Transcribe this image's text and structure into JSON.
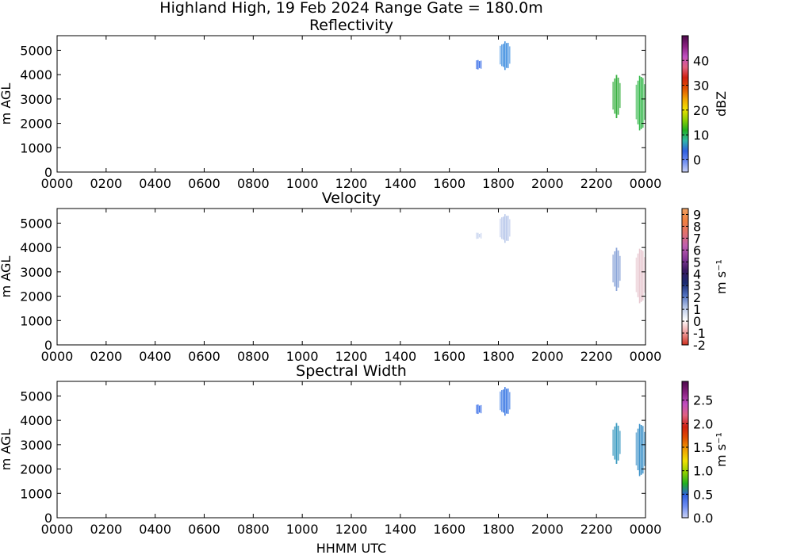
{
  "figure": {
    "suptitle": "Highland High, 19 Feb 2024 Range Gate = 180.0m",
    "xlabel": "HHMM UTC"
  },
  "chart_data": [
    {
      "type": "heatmap",
      "title": "Reflectivity",
      "ylabel": "m AGL",
      "x_tick_labels": [
        "0000",
        "0200",
        "0400",
        "0600",
        "0800",
        "1000",
        "1200",
        "1400",
        "1600",
        "1800",
        "2000",
        "2200",
        "0000"
      ],
      "xlim_hours": [
        0,
        24
      ],
      "ylim": [
        0,
        5600
      ],
      "y_ticks": [
        0,
        1000,
        2000,
        3000,
        4000,
        5000
      ],
      "colorbar": {
        "label": "dBZ",
        "range": [
          -5,
          50
        ],
        "ticks": [
          0,
          10,
          20,
          30,
          40
        ],
        "colors": [
          "#c9d0f5",
          "#6f8ef2",
          "#2f60e0",
          "#2fb8a8",
          "#20b020",
          "#90d000",
          "#f0e000",
          "#f0a000",
          "#e05000",
          "#d02010",
          "#e06080",
          "#c050c0",
          "#8a2080",
          "#4a0a4a"
        ]
      },
      "echoes": [
        {
          "t_start": 17.08,
          "t_end": 17.33,
          "z_bottom": 4150,
          "z_top": 4650,
          "mean_value": -1,
          "color": "#3a6fe8"
        },
        {
          "t_start": 18.05,
          "t_end": 18.5,
          "z_bottom": 4150,
          "z_top": 5400,
          "mean_value": 3,
          "color": "#3e8ee0"
        },
        {
          "t_start": 22.65,
          "t_end": 23.0,
          "z_bottom": 2200,
          "z_top": 4000,
          "mean_value": 9,
          "color": "#38b040"
        },
        {
          "t_start": 23.6,
          "t_end": 24.0,
          "z_bottom": 1650,
          "z_top": 4000,
          "mean_value": 10,
          "color": "#34b84a"
        }
      ]
    },
    {
      "type": "heatmap",
      "title": "Velocity",
      "ylabel": "m AGL",
      "x_tick_labels": [
        "0000",
        "0200",
        "0400",
        "0600",
        "0800",
        "1000",
        "1200",
        "1400",
        "1600",
        "1800",
        "2000",
        "2200",
        "0000"
      ],
      "xlim_hours": [
        0,
        24
      ],
      "ylim": [
        0,
        5600
      ],
      "y_ticks": [
        0,
        1000,
        2000,
        3000,
        4000,
        5000
      ],
      "colorbar": {
        "label": "m s⁻¹",
        "range": [
          -2,
          9.5
        ],
        "ticks": [
          -2,
          -1,
          0,
          1,
          2,
          3,
          4,
          5,
          6,
          7,
          8,
          9
        ],
        "colors": [
          "#d03020",
          "#f0a0a0",
          "#ffffff",
          "#b8c8e8",
          "#5070c0",
          "#1a2a70",
          "#3a1a60",
          "#8a3a9a",
          "#c060b0",
          "#e07070",
          "#f08040",
          "#f0a060"
        ]
      },
      "echoes": [
        {
          "t_start": 17.08,
          "t_end": 17.33,
          "z_bottom": 4300,
          "z_top": 4650,
          "mean_value": 1,
          "color": "#c8d4ee"
        },
        {
          "t_start": 18.05,
          "t_end": 18.5,
          "z_bottom": 4150,
          "z_top": 5400,
          "mean_value": 1,
          "color": "#b8c8ea"
        },
        {
          "t_start": 22.65,
          "t_end": 23.0,
          "z_bottom": 2200,
          "z_top": 4000,
          "mean_value": 1.5,
          "color": "#8aa4d8"
        },
        {
          "t_start": 23.6,
          "t_end": 24.0,
          "z_bottom": 1650,
          "z_top": 4000,
          "mean_value": 0,
          "color": "#e8c8d0"
        }
      ]
    },
    {
      "type": "heatmap",
      "title": "Spectral Width",
      "ylabel": "m AGL",
      "x_tick_labels": [
        "0000",
        "0200",
        "0400",
        "0600",
        "0800",
        "1000",
        "1200",
        "1400",
        "1600",
        "1800",
        "2000",
        "2200",
        "0000"
      ],
      "xlim_hours": [
        0,
        24
      ],
      "ylim": [
        0,
        5600
      ],
      "y_ticks": [
        0,
        1000,
        2000,
        3000,
        4000,
        5000
      ],
      "colorbar": {
        "label": "m s⁻¹",
        "range": [
          0,
          2.9
        ],
        "ticks": [
          "0.0",
          "0.5",
          "1.0",
          "1.5",
          "2.0",
          "2.5"
        ],
        "colors": [
          "#c9d0f5",
          "#6f8ef2",
          "#2f60e0",
          "#20b020",
          "#90d000",
          "#f0e000",
          "#f0a000",
          "#e05000",
          "#d02010",
          "#e06080",
          "#c050c0",
          "#8a2080",
          "#4a0a4a"
        ]
      },
      "echoes": [
        {
          "t_start": 17.08,
          "t_end": 17.33,
          "z_bottom": 4200,
          "z_top": 4700,
          "mean_value": 0.4,
          "color": "#3a6fe8"
        },
        {
          "t_start": 18.05,
          "t_end": 18.5,
          "z_bottom": 4150,
          "z_top": 5400,
          "mean_value": 0.5,
          "color": "#3a78e4"
        },
        {
          "t_start": 22.65,
          "t_end": 23.0,
          "z_bottom": 2200,
          "z_top": 3900,
          "mean_value": 0.7,
          "color": "#3a9ac0"
        },
        {
          "t_start": 23.6,
          "t_end": 24.0,
          "z_bottom": 1650,
          "z_top": 3900,
          "mean_value": 0.6,
          "color": "#3a90c8"
        }
      ]
    }
  ]
}
